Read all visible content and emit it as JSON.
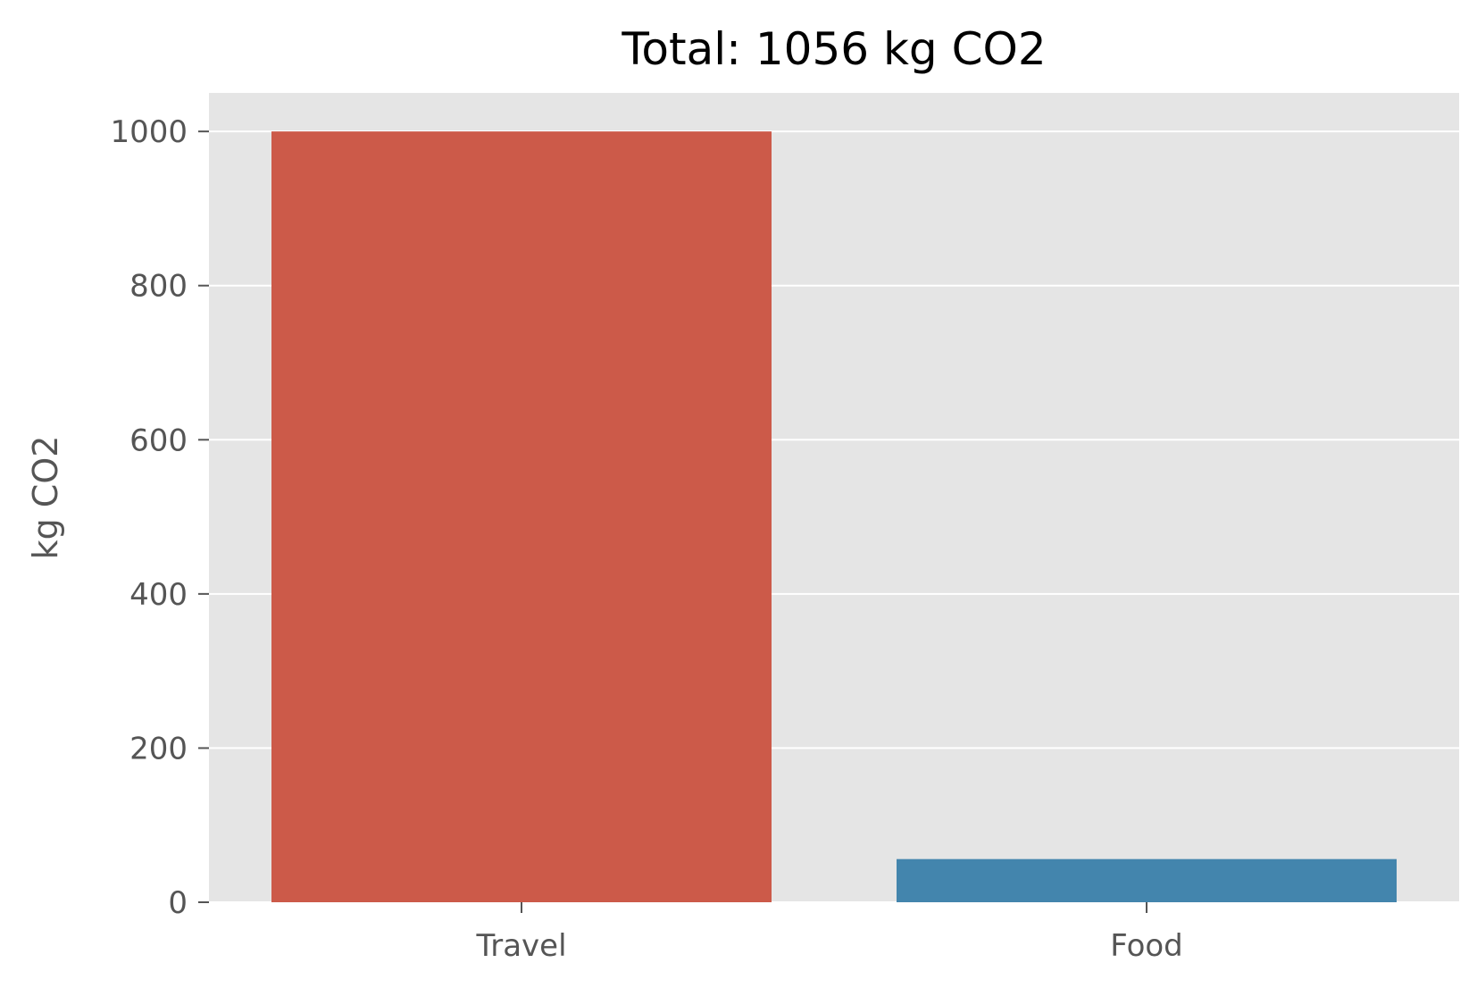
{
  "chart_data": {
    "type": "bar",
    "title": "Total: 1056 kg CO2",
    "xlabel": "",
    "ylabel": "kg CO2",
    "categories": [
      "Travel",
      "Food"
    ],
    "values": [
      1000,
      56
    ],
    "colors": [
      "#CC5A49",
      "#4385AD"
    ],
    "ylim": [
      0,
      1050
    ],
    "yticks": [
      0,
      200,
      400,
      600,
      800,
      1000
    ],
    "grid": true,
    "background": "#E5E5E5",
    "grid_color": "#FFFFFF",
    "legend": "none"
  }
}
